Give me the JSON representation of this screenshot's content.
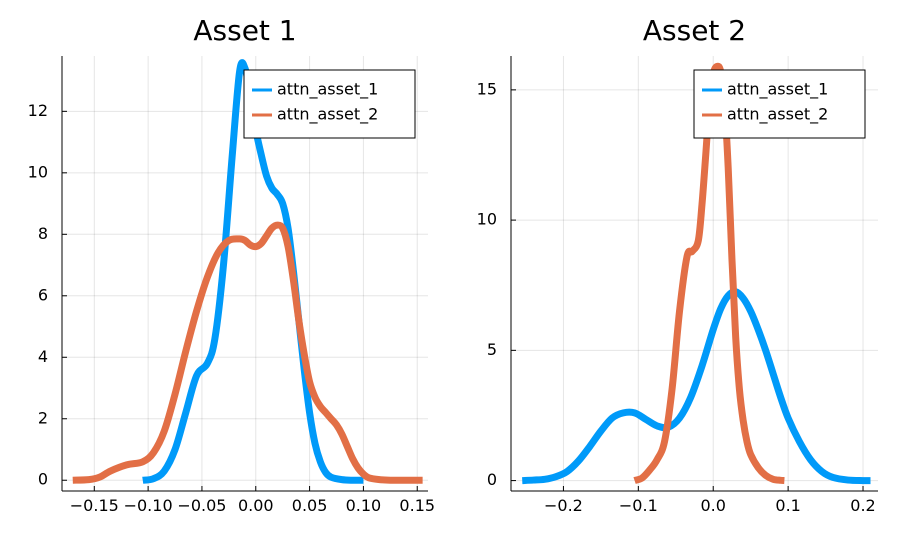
{
  "chart_data": [
    {
      "type": "line",
      "title": "Asset 1",
      "xlim": [
        -0.18,
        0.16
      ],
      "ylim": [
        -0.35,
        13.8
      ],
      "xticks": [
        -0.15,
        -0.1,
        -0.05,
        0.0,
        0.05,
        0.1,
        0.15
      ],
      "xtick_labels": [
        "−0.15",
        "−0.10",
        "−0.05",
        "0.00",
        "0.05",
        "0.10",
        "0.15"
      ],
      "yticks": [
        0,
        2,
        4,
        6,
        8,
        10,
        12
      ],
      "ytick_labels": [
        "0",
        "2",
        "4",
        "6",
        "8",
        "10",
        "12"
      ],
      "grid": true,
      "legend_position": "top-right",
      "series": [
        {
          "name": "attn_asset_1",
          "color": "#009af9",
          "x": [
            -0.105,
            -0.095,
            -0.085,
            -0.075,
            -0.065,
            -0.055,
            -0.045,
            -0.038,
            -0.03,
            -0.022,
            -0.015,
            -0.01,
            -0.005,
            0.0,
            0.005,
            0.01,
            0.015,
            0.02,
            0.025,
            0.03,
            0.035,
            0.04,
            0.045,
            0.05,
            0.055,
            0.06,
            0.065,
            0.07,
            0.08,
            0.09,
            0.1
          ],
          "y": [
            0.0,
            0.05,
            0.3,
            1.0,
            2.2,
            3.4,
            3.8,
            4.6,
            7.0,
            10.5,
            13.3,
            13.4,
            12.5,
            11.4,
            10.6,
            9.9,
            9.5,
            9.3,
            9.0,
            8.2,
            6.8,
            5.2,
            3.6,
            2.2,
            1.2,
            0.6,
            0.25,
            0.1,
            0.02,
            0.0,
            0.0
          ]
        },
        {
          "name": "attn_asset_2",
          "color": "#e26f46",
          "x": [
            -0.17,
            -0.155,
            -0.145,
            -0.135,
            -0.12,
            -0.105,
            -0.095,
            -0.085,
            -0.075,
            -0.065,
            -0.055,
            -0.045,
            -0.035,
            -0.025,
            -0.015,
            -0.01,
            -0.005,
            0.0,
            0.005,
            0.01,
            0.015,
            0.02,
            0.025,
            0.03,
            0.035,
            0.04,
            0.045,
            0.05,
            0.055,
            0.06,
            0.065,
            0.07,
            0.075,
            0.08,
            0.085,
            0.09,
            0.095,
            0.1,
            0.105,
            0.115,
            0.125,
            0.14,
            0.155
          ],
          "y": [
            0.0,
            0.02,
            0.1,
            0.3,
            0.5,
            0.6,
            0.9,
            1.6,
            2.8,
            4.2,
            5.5,
            6.6,
            7.4,
            7.8,
            7.85,
            7.8,
            7.65,
            7.6,
            7.7,
            7.95,
            8.2,
            8.3,
            8.2,
            7.6,
            6.5,
            5.2,
            4.1,
            3.2,
            2.7,
            2.4,
            2.2,
            2.0,
            1.8,
            1.5,
            1.1,
            0.7,
            0.4,
            0.2,
            0.08,
            0.02,
            0.0,
            0.0,
            0.0
          ]
        }
      ]
    },
    {
      "type": "line",
      "title": "Asset 2",
      "xlim": [
        -0.27,
        0.22
      ],
      "ylim": [
        -0.4,
        16.3
      ],
      "xticks": [
        -0.2,
        -0.1,
        0.0,
        0.1,
        0.2
      ],
      "xtick_labels": [
        "−0.2",
        "−0.1",
        "0.0",
        "0.1",
        "0.2"
      ],
      "yticks": [
        0,
        5,
        10,
        15
      ],
      "ytick_labels": [
        "0",
        "5",
        "10",
        "15"
      ],
      "grid": true,
      "legend_position": "top-right",
      "series": [
        {
          "name": "attn_asset_1",
          "color": "#009af9",
          "x": [
            -0.255,
            -0.24,
            -0.225,
            -0.21,
            -0.195,
            -0.18,
            -0.165,
            -0.15,
            -0.135,
            -0.12,
            -0.105,
            -0.09,
            -0.075,
            -0.06,
            -0.045,
            -0.03,
            -0.015,
            0.0,
            0.01,
            0.02,
            0.03,
            0.04,
            0.05,
            0.06,
            0.07,
            0.08,
            0.09,
            0.1,
            0.115,
            0.13,
            0.145,
            0.16,
            0.18,
            0.2,
            0.21
          ],
          "y": [
            0.0,
            0.02,
            0.05,
            0.15,
            0.35,
            0.75,
            1.3,
            1.9,
            2.4,
            2.6,
            2.6,
            2.35,
            2.1,
            2.05,
            2.4,
            3.2,
            4.4,
            5.8,
            6.6,
            7.1,
            7.25,
            7.0,
            6.5,
            5.8,
            5.0,
            4.1,
            3.2,
            2.4,
            1.5,
            0.8,
            0.35,
            0.12,
            0.02,
            0.0,
            0.0
          ]
        },
        {
          "name": "attn_asset_2",
          "color": "#e26f46",
          "x": [
            -0.105,
            -0.095,
            -0.085,
            -0.075,
            -0.065,
            -0.055,
            -0.045,
            -0.035,
            -0.028,
            -0.02,
            -0.015,
            -0.01,
            -0.005,
            0.0,
            0.005,
            0.01,
            0.015,
            0.02,
            0.025,
            0.03,
            0.035,
            0.04,
            0.045,
            0.05,
            0.06,
            0.07,
            0.08,
            0.09,
            0.095
          ],
          "y": [
            0.0,
            0.1,
            0.4,
            0.8,
            1.5,
            3.5,
            6.5,
            8.6,
            8.8,
            9.2,
            10.6,
            12.5,
            14.5,
            15.6,
            15.9,
            15.7,
            14.5,
            12.0,
            8.5,
            5.5,
            3.5,
            2.3,
            1.5,
            1.0,
            0.5,
            0.2,
            0.05,
            0.01,
            0.0
          ]
        }
      ]
    }
  ]
}
